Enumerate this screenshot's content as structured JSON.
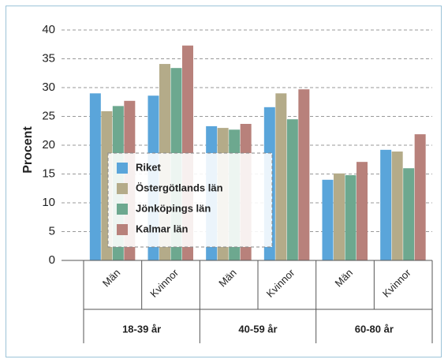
{
  "chart_data": {
    "type": "bar",
    "y_label": "Procent",
    "categories": [
      "Män",
      "Kvinnor",
      "Män",
      "Kvinnor",
      "Män",
      "Kvinnor"
    ],
    "category_groups": [
      "18-39 år",
      "40-59 år",
      "60-80 år"
    ],
    "series": [
      {
        "name": "Riket",
        "color": "#5aa5da",
        "values": [
          29.0,
          28.6,
          23.3,
          26.6,
          14.0,
          19.2
        ]
      },
      {
        "name": "Östergötlands län",
        "color": "#b4ab89",
        "values": [
          25.9,
          34.1,
          23.0,
          29.0,
          15.1,
          18.9
        ]
      },
      {
        "name": "Jönköpings län",
        "color": "#6da88f",
        "values": [
          26.8,
          33.4,
          22.7,
          24.5,
          14.8,
          16.0
        ]
      },
      {
        "name": "Kalmar län",
        "color": "#b8817b",
        "values": [
          27.7,
          37.3,
          23.7,
          29.7,
          17.1,
          21.9
        ]
      }
    ],
    "ylim": [
      0,
      40
    ],
    "yticks": [
      0,
      5,
      10,
      15,
      20,
      25,
      30,
      35,
      40
    ],
    "grid": true
  }
}
